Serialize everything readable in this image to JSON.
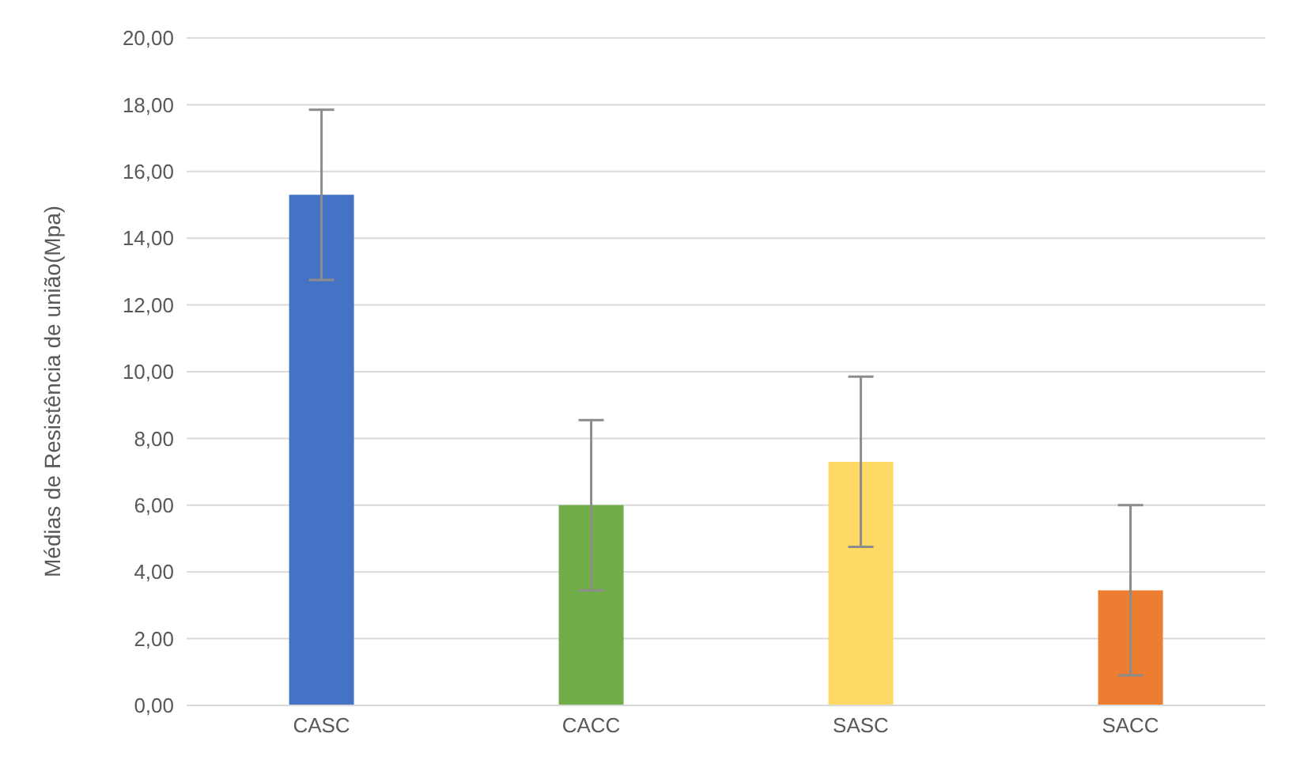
{
  "chart_data": {
    "type": "bar",
    "ylabel": "Médias de Resistência de união(Mpa)",
    "categories": [
      "CASC",
      "CACC",
      "SASC",
      "SACC"
    ],
    "values": [
      15.3,
      6.0,
      7.3,
      3.45
    ],
    "colors": [
      "#4472c4",
      "#70ad47",
      "#ffd966",
      "#ed7d31"
    ],
    "errors": [
      2.55,
      2.55,
      2.55,
      2.55
    ],
    "ylim": [
      0,
      20
    ],
    "yticks": [
      {
        "value": 0,
        "label": "0,00"
      },
      {
        "value": 2,
        "label": "2,00"
      },
      {
        "value": 4,
        "label": "4,00"
      },
      {
        "value": 6,
        "label": "6,00"
      },
      {
        "value": 8,
        "label": "8,00"
      },
      {
        "value": 10,
        "label": "10,00"
      },
      {
        "value": 12,
        "label": "12,00"
      },
      {
        "value": 14,
        "label": "14,00"
      },
      {
        "value": 16,
        "label": "16,00"
      },
      {
        "value": 18,
        "label": "18,00"
      },
      {
        "value": 20,
        "label": "20,00"
      }
    ],
    "grid": "y"
  }
}
